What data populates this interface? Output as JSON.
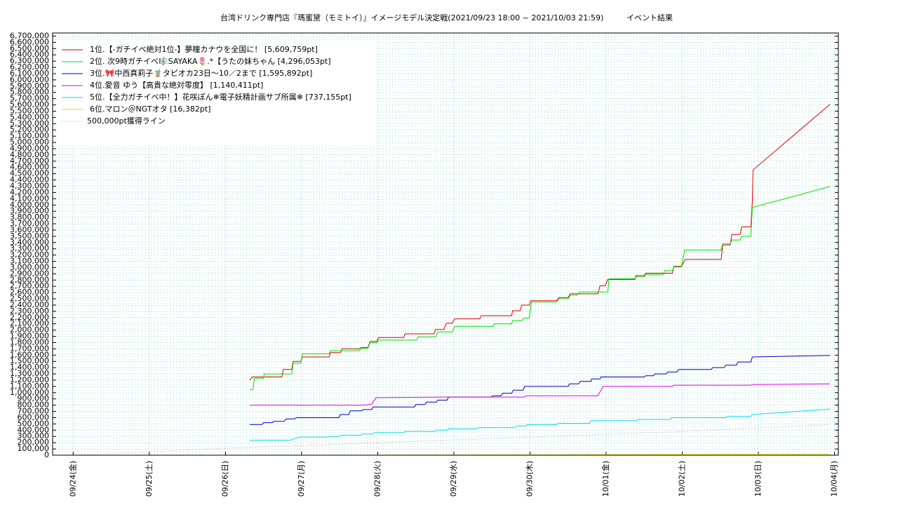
{
  "chart_data": {
    "type": "line",
    "title": "台湾ドリンク専門店『瑪蜜黛（モミトイ）』イメージモデル決定戦(2021/09/23 18:00 ~ 2021/10/03 21:59)",
    "subtitle": "イベント結果",
    "xlim": [
      0.73,
      11.05
    ],
    "xticks": [
      {
        "value": 1,
        "label": "09/24(金)"
      },
      {
        "value": 2,
        "label": "09/25(土)"
      },
      {
        "value": 3,
        "label": "09/26(日)"
      },
      {
        "value": 4,
        "label": "09/27(月)"
      },
      {
        "value": 5,
        "label": "09/28(火)"
      },
      {
        "value": 6,
        "label": "09/29(水)"
      },
      {
        "value": 7,
        "label": "09/30(木)"
      },
      {
        "value": 8,
        "label": "10/01(金)"
      },
      {
        "value": 9,
        "label": "10/02(土)"
      },
      {
        "value": 10,
        "label": "10/03(日)"
      },
      {
        "value": 11,
        "label": "10/04(月)"
      }
    ],
    "ylim": [
      0,
      6750000
    ],
    "yticks": [
      0,
      {
        "value": 100000,
        "label": "100,000"
      },
      {
        "value": 200000,
        "label": "200,000"
      },
      {
        "value": 300000,
        "label": "300,000"
      },
      {
        "value": 400000,
        "label": "400,000"
      },
      {
        "value": 500000,
        "label": "500,000"
      },
      {
        "value": 600000,
        "label": "600,000"
      },
      {
        "value": 700000,
        "label": "700,000"
      },
      {
        "value": 800000,
        "label": "800,000"
      },
      {
        "value": 900000,
        "label": "900,000"
      },
      {
        "value": 1000000,
        "label": "1,000,000"
      },
      {
        "value": 1100000,
        "label": "1,100,000"
      },
      {
        "value": 1200000,
        "label": "1,200,000"
      },
      {
        "value": 1300000,
        "label": "1,300,000"
      },
      {
        "value": 1400000,
        "label": "1,400,000"
      },
      {
        "value": 1500000,
        "label": "1,500,000"
      },
      {
        "value": 1600000,
        "label": "1,600,000"
      },
      {
        "value": 1700000,
        "label": "1,700,000"
      },
      {
        "value": 1800000,
        "label": "1,800,000"
      },
      {
        "value": 1900000,
        "label": "1,900,000"
      },
      {
        "value": 2000000,
        "label": "2,000,000"
      },
      {
        "value": 2100000,
        "label": "2,100,000"
      },
      {
        "value": 2200000,
        "label": "2,200,000"
      },
      {
        "value": 2300000,
        "label": "2,300,000"
      },
      {
        "value": 2400000,
        "label": "2,400,000"
      },
      {
        "value": 2500000,
        "label": "2,500,000"
      },
      {
        "value": 2600000,
        "label": "2,600,000"
      },
      {
        "value": 2700000,
        "label": "2,700,000"
      },
      {
        "value": 2800000,
        "label": "2,800,000"
      },
      {
        "value": 2900000,
        "label": "2,900,000"
      },
      {
        "value": 3000000,
        "label": "3,000,000"
      },
      {
        "value": 3100000,
        "label": "3,100,000"
      },
      {
        "value": 3200000,
        "label": "3,200,000"
      },
      {
        "value": 3300000,
        "label": "3,300,000"
      },
      {
        "value": 3400000,
        "label": "3,400,000"
      },
      {
        "value": 3500000,
        "label": "3,500,000"
      },
      {
        "value": 3600000,
        "label": "3,600,000"
      },
      {
        "value": 3700000,
        "label": "3,700,000"
      },
      {
        "value": 3800000,
        "label": "3,800,000"
      },
      {
        "value": 3900000,
        "label": "3,900,000"
      },
      {
        "value": 4000000,
        "label": "4,000,000"
      },
      {
        "value": 4100000,
        "label": "4,100,000"
      },
      {
        "value": 4200000,
        "label": "4,200,000"
      },
      {
        "value": 4300000,
        "label": "4,300,000"
      },
      {
        "value": 4400000,
        "label": "4,400,000"
      },
      {
        "value": 4500000,
        "label": "4,500,000"
      },
      {
        "value": 4600000,
        "label": "4,600,000"
      },
      {
        "value": 4700000,
        "label": "4,700,000"
      },
      {
        "value": 4800000,
        "label": "4,800,000"
      },
      {
        "value": 4900000,
        "label": "4,900,000"
      },
      {
        "value": 5000000,
        "label": "5,000,000"
      },
      {
        "value": 5100000,
        "label": "5,100,000"
      },
      {
        "value": 5200000,
        "label": "5,200,000"
      },
      {
        "value": 5300000,
        "label": "5,300,000"
      },
      {
        "value": 5400000,
        "label": "5,400,000"
      },
      {
        "value": 5500000,
        "label": "5,500,000"
      },
      {
        "value": 5600000,
        "label": "5,600,000"
      },
      {
        "value": 5700000,
        "label": "5,700,000"
      },
      {
        "value": 5800000,
        "label": "5,800,000"
      },
      {
        "value": 5900000,
        "label": "5,900,000"
      },
      {
        "value": 6000000,
        "label": "6,000,000"
      },
      {
        "value": 6100000,
        "label": "6,100,000"
      },
      {
        "value": 6200000,
        "label": "6,200,000"
      },
      {
        "value": 6300000,
        "label": "6,300,000"
      },
      {
        "value": 6400000,
        "label": "6,400,000"
      },
      {
        "value": 6500000,
        "label": "6,500,000"
      },
      {
        "value": 6600000,
        "label": "6,600,000"
      },
      {
        "value": 6700000,
        "label": "6,700,000"
      }
    ],
    "grid": true,
    "legend": "upper left",
    "series": [
      {
        "name": "1位.【-ガチイベ絶対1位-】夢瞳カナウを全国に！ [5,609,759pt]",
        "color": "#e00000",
        "x": [
          3.32,
          3.35,
          3.74,
          3.76,
          3.87,
          3.89,
          3.99,
          4.01,
          4.36,
          4.38,
          4.51,
          4.53,
          4.76,
          4.78,
          4.87,
          4.9,
          4.99,
          5.01,
          5.34,
          5.36,
          5.74,
          5.76,
          5.87,
          5.9,
          5.98,
          6.01,
          6.34,
          6.36,
          6.76,
          6.77,
          6.87,
          6.89,
          6.99,
          7.01,
          7.35,
          7.38,
          7.5,
          7.53,
          7.89,
          7.92,
          7.99,
          8.02,
          8.38,
          8.39,
          8.5,
          8.52,
          8.87,
          8.89,
          8.99,
          9.04,
          9.51,
          9.53,
          9.63,
          9.65,
          9.76,
          9.78,
          9.9,
          9.92,
          9.93,
          10.94
        ],
        "values": [
          1200000,
          1250000,
          1250000,
          1370000,
          1370000,
          1500000,
          1500000,
          1570000,
          1570000,
          1640000,
          1640000,
          1700000,
          1700000,
          1720000,
          1720000,
          1820000,
          1820000,
          1880000,
          1880000,
          1940000,
          1940000,
          2010000,
          2010000,
          2110000,
          2110000,
          2180000,
          2180000,
          2230000,
          2230000,
          2310000,
          2310000,
          2400000,
          2400000,
          2470000,
          2470000,
          2520000,
          2520000,
          2580000,
          2580000,
          2710000,
          2710000,
          2810000,
          2810000,
          2870000,
          2870000,
          2910000,
          2910000,
          3020000,
          3020000,
          3130000,
          3130000,
          3360000,
          3360000,
          3530000,
          3530000,
          3650000,
          3650000,
          4050000,
          4560000,
          5609759
        ]
      },
      {
        "name": "2位. 次9時ガチイベ🎼SAYAKA🌷.*【うたの妹ちゃん [4,296,053pt]",
        "color": "#00e000",
        "x": [
          3.32,
          3.36,
          3.38,
          3.5,
          3.51,
          3.87,
          3.89,
          3.99,
          4.01,
          4.36,
          4.38,
          4.76,
          4.78,
          4.87,
          4.9,
          4.99,
          5.01,
          5.51,
          5.53,
          5.76,
          5.79,
          5.98,
          6.01,
          6.52,
          6.53,
          6.76,
          6.77,
          6.89,
          6.92,
          6.99,
          7.02,
          7.35,
          7.38,
          7.5,
          7.53,
          7.62,
          7.65,
          8.02,
          8.04,
          8.38,
          8.39,
          8.5,
          8.52,
          8.75,
          8.77,
          8.87,
          8.89,
          8.99,
          9.03,
          9.51,
          9.53,
          9.63,
          9.65,
          9.76,
          9.78,
          9.9,
          9.92,
          10.94
        ],
        "values": [
          1050000,
          1050000,
          1230000,
          1230000,
          1300000,
          1300000,
          1470000,
          1470000,
          1620000,
          1620000,
          1670000,
          1670000,
          1710000,
          1710000,
          1800000,
          1800000,
          1840000,
          1840000,
          1890000,
          1890000,
          1970000,
          1970000,
          2060000,
          2060000,
          2100000,
          2100000,
          2150000,
          2150000,
          2190000,
          2190000,
          2450000,
          2450000,
          2500000,
          2500000,
          2560000,
          2560000,
          2610000,
          2610000,
          2820000,
          2820000,
          2850000,
          2850000,
          2890000,
          2890000,
          2950000,
          2950000,
          3010000,
          3010000,
          3280000,
          3280000,
          3380000,
          3380000,
          3440000,
          3440000,
          3500000,
          3500000,
          3960000,
          4296053
        ]
      },
      {
        "name": "3位.🎀中西真莉子🧋タピオカ23日〜10／2まで [1,595,892pt]",
        "color": "#0000c0",
        "x": [
          3.32,
          3.48,
          3.5,
          3.62,
          3.63,
          3.77,
          3.8,
          3.91,
          3.93,
          4.49,
          4.51,
          4.62,
          4.64,
          4.79,
          4.81,
          4.92,
          4.94,
          5.48,
          5.5,
          5.62,
          5.64,
          5.77,
          5.79,
          5.91,
          5.93,
          6.49,
          6.51,
          6.62,
          6.64,
          6.76,
          6.78,
          6.91,
          6.93,
          7.5,
          7.52,
          7.64,
          7.66,
          7.8,
          7.81,
          7.92,
          7.93,
          8.5,
          8.52,
          8.62,
          8.64,
          8.79,
          8.81,
          8.93,
          8.95,
          9.38,
          9.4,
          9.55,
          9.57,
          9.71,
          9.73,
          9.9,
          9.92,
          10.94
        ],
        "values": [
          490000,
          490000,
          520000,
          520000,
          540000,
          540000,
          580000,
          580000,
          600000,
          600000,
          650000,
          650000,
          710000,
          710000,
          730000,
          730000,
          770000,
          770000,
          810000,
          810000,
          850000,
          850000,
          880000,
          880000,
          930000,
          930000,
          950000,
          950000,
          990000,
          990000,
          1040000,
          1040000,
          1100000,
          1100000,
          1140000,
          1140000,
          1180000,
          1180000,
          1220000,
          1220000,
          1250000,
          1250000,
          1270000,
          1270000,
          1300000,
          1300000,
          1330000,
          1330000,
          1370000,
          1370000,
          1400000,
          1400000,
          1440000,
          1440000,
          1490000,
          1490000,
          1570000,
          1595892
        ]
      },
      {
        "name": "4位.愛音 ゆう【高貴な絶対零度】 [1,140,411pt]",
        "color": "#e000e0",
        "x": [
          3.32,
          4.83,
          4.92,
          4.98,
          5.94,
          6.92,
          6.95,
          7.89,
          7.96,
          8.86,
          8.9,
          9.9,
          9.92,
          10.94
        ],
        "values": [
          800000,
          800000,
          820000,
          920000,
          930000,
          930000,
          950000,
          950000,
          1100000,
          1100000,
          1120000,
          1120000,
          1130000,
          1140411
        ]
      },
      {
        "name": "5位.【全力ガチイベ中！】花咲ぽん❄電子妖精計画サブ所属❄ [737,155pt]",
        "color": "#00e0e0",
        "x": [
          3.32,
          3.85,
          3.89,
          3.98,
          4.35,
          4.37,
          4.5,
          4.52,
          4.78,
          4.8,
          4.93,
          4.95,
          5.34,
          5.36,
          5.75,
          5.77,
          5.91,
          5.93,
          6.3,
          6.32,
          6.81,
          6.83,
          6.95,
          6.97,
          7.35,
          7.37,
          7.78,
          7.8,
          8.39,
          8.41,
          8.84,
          8.86,
          9.57,
          9.59,
          9.9,
          9.92,
          10.94
        ],
        "values": [
          240000,
          240000,
          260000,
          290000,
          290000,
          300000,
          300000,
          320000,
          320000,
          340000,
          340000,
          360000,
          360000,
          380000,
          380000,
          400000,
          400000,
          420000,
          420000,
          440000,
          440000,
          470000,
          470000,
          490000,
          490000,
          510000,
          510000,
          550000,
          550000,
          570000,
          570000,
          600000,
          600000,
          620000,
          620000,
          650000,
          737155
        ]
      },
      {
        "name": "6位.マロン＠NGTオタ [16,382pt]",
        "color": "#e0e000",
        "x": [
          5.01,
          10.94
        ],
        "values": [
          2000,
          16382
        ]
      },
      {
        "name": "500,000pt獲得ライン",
        "color": "#b0a0a0",
        "line_style": "dotted",
        "x": [
          1,
          2.99,
          5.01,
          7.01,
          9.04,
          10.94
        ],
        "values": [
          0,
          110000,
          200000,
          290000,
          380000,
          490000
        ]
      }
    ]
  }
}
